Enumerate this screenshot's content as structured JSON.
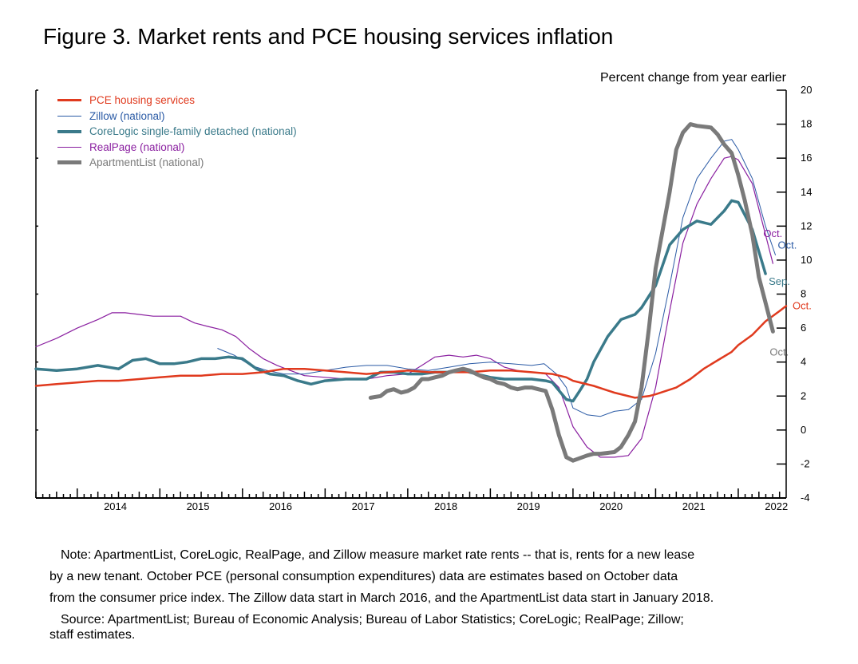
{
  "figure": {
    "title": "Figure 3. Market rents and PCE housing services inflation",
    "units_label": "Percent change from year earlier"
  },
  "notes": {
    "note_lines": [
      "Note: ApartmentList, CoreLogic, RealPage, and Zillow measure market rate rents -- that is, rents for a new lease",
      "by a new tenant. October PCE (personal consumption expenditures) data are estimates based on October data",
      "from the consumer price index. The Zillow data start in March 2016, and the ApartmentList data start in January 2018."
    ],
    "source_lines": [
      "Source: ApartmentList; Bureau of Economic Analysis; Bureau of Labor Statistics; CoreLogic; RealPage; Zillow;",
      "staff estimates."
    ]
  },
  "chart_data": {
    "type": "line",
    "title": "Figure 3. Market rents and PCE housing services inflation",
    "ylabel": "Percent change from year earlier",
    "xlim": [
      2013.5,
      2022.58
    ],
    "ylim": [
      -4,
      20
    ],
    "yticks": [
      -4,
      -2,
      0,
      2,
      4,
      6,
      8,
      10,
      12,
      14,
      16,
      18,
      20
    ],
    "xticks": [
      {
        "label": "2014",
        "x": 2014.0
      },
      {
        "label": "2015",
        "x": 2015.0
      },
      {
        "label": "2016",
        "x": 2016.0
      },
      {
        "label": "2017",
        "x": 2017.0
      },
      {
        "label": "2018",
        "x": 2018.0
      },
      {
        "label": "2019",
        "x": 2019.0
      },
      {
        "label": "2020",
        "x": 2020.0
      },
      {
        "label": "2021",
        "x": 2021.0
      },
      {
        "label": "2022",
        "x": 2022.0
      }
    ],
    "y_axis_side": "right",
    "grid": false,
    "legend_position": "top-left",
    "series": [
      {
        "name": "PCE housing services",
        "color": "#e03a1e",
        "width": 2.5,
        "end_label": "Oct.",
        "points": [
          [
            2013.5,
            2.6
          ],
          [
            2013.75,
            2.7
          ],
          [
            2014.0,
            2.8
          ],
          [
            2014.25,
            2.9
          ],
          [
            2014.5,
            2.9
          ],
          [
            2014.75,
            3.0
          ],
          [
            2015.0,
            3.1
          ],
          [
            2015.25,
            3.2
          ],
          [
            2015.5,
            3.2
          ],
          [
            2015.75,
            3.3
          ],
          [
            2016.0,
            3.3
          ],
          [
            2016.25,
            3.4
          ],
          [
            2016.5,
            3.6
          ],
          [
            2016.75,
            3.6
          ],
          [
            2017.0,
            3.5
          ],
          [
            2017.25,
            3.4
          ],
          [
            2017.5,
            3.3
          ],
          [
            2017.75,
            3.4
          ],
          [
            2018.0,
            3.5
          ],
          [
            2018.25,
            3.4
          ],
          [
            2018.5,
            3.4
          ],
          [
            2018.75,
            3.4
          ],
          [
            2019.0,
            3.5
          ],
          [
            2019.25,
            3.5
          ],
          [
            2019.5,
            3.4
          ],
          [
            2019.75,
            3.3
          ],
          [
            2019.92,
            3.1
          ],
          [
            2020.0,
            2.9
          ],
          [
            2020.25,
            2.6
          ],
          [
            2020.5,
            2.2
          ],
          [
            2020.75,
            1.9
          ],
          [
            2020.92,
            2.0
          ],
          [
            2021.0,
            2.1
          ],
          [
            2021.25,
            2.5
          ],
          [
            2021.42,
            3.0
          ],
          [
            2021.58,
            3.6
          ],
          [
            2021.75,
            4.1
          ],
          [
            2021.92,
            4.6
          ],
          [
            2022.0,
            5.0
          ],
          [
            2022.17,
            5.6
          ],
          [
            2022.33,
            6.4
          ],
          [
            2022.5,
            7.0
          ],
          [
            2022.58,
            7.3
          ]
        ]
      },
      {
        "name": "Zillow (national)",
        "color": "#2a5aa5",
        "width": 1,
        "end_label": "Oct.",
        "points": [
          [
            2015.7,
            4.8
          ],
          [
            2015.9,
            4.4
          ],
          [
            2016.1,
            3.8
          ],
          [
            2016.3,
            3.5
          ],
          [
            2016.5,
            3.3
          ],
          [
            2016.75,
            3.3
          ],
          [
            2017.0,
            3.5
          ],
          [
            2017.25,
            3.7
          ],
          [
            2017.5,
            3.8
          ],
          [
            2017.75,
            3.8
          ],
          [
            2018.0,
            3.6
          ],
          [
            2018.25,
            3.5
          ],
          [
            2018.5,
            3.7
          ],
          [
            2018.75,
            3.9
          ],
          [
            2019.0,
            4.0
          ],
          [
            2019.25,
            3.9
          ],
          [
            2019.5,
            3.8
          ],
          [
            2019.65,
            3.9
          ],
          [
            2019.8,
            3.3
          ],
          [
            2019.92,
            2.5
          ],
          [
            2020.0,
            1.3
          ],
          [
            2020.17,
            0.9
          ],
          [
            2020.33,
            0.8
          ],
          [
            2020.5,
            1.1
          ],
          [
            2020.67,
            1.2
          ],
          [
            2020.83,
            1.8
          ],
          [
            2021.0,
            4.5
          ],
          [
            2021.17,
            8.5
          ],
          [
            2021.33,
            12.5
          ],
          [
            2021.5,
            14.8
          ],
          [
            2021.67,
            16.0
          ],
          [
            2021.83,
            17.0
          ],
          [
            2021.92,
            17.1
          ],
          [
            2022.0,
            16.5
          ],
          [
            2022.17,
            14.8
          ],
          [
            2022.33,
            12.0
          ],
          [
            2022.45,
            10.3
          ]
        ]
      },
      {
        "name": "CoreLogic single-family detached (national)",
        "color": "#3a7a8a",
        "width": 3.5,
        "end_label": "Sep.",
        "points": [
          [
            2013.5,
            3.6
          ],
          [
            2013.75,
            3.5
          ],
          [
            2014.0,
            3.6
          ],
          [
            2014.25,
            3.8
          ],
          [
            2014.5,
            3.6
          ],
          [
            2014.67,
            4.1
          ],
          [
            2014.83,
            4.2
          ],
          [
            2015.0,
            3.9
          ],
          [
            2015.17,
            3.9
          ],
          [
            2015.33,
            4.0
          ],
          [
            2015.5,
            4.2
          ],
          [
            2015.67,
            4.2
          ],
          [
            2015.83,
            4.3
          ],
          [
            2016.0,
            4.2
          ],
          [
            2016.17,
            3.6
          ],
          [
            2016.33,
            3.3
          ],
          [
            2016.5,
            3.2
          ],
          [
            2016.67,
            2.9
          ],
          [
            2016.83,
            2.7
          ],
          [
            2017.0,
            2.9
          ],
          [
            2017.25,
            3.0
          ],
          [
            2017.5,
            3.0
          ],
          [
            2017.67,
            3.4
          ],
          [
            2017.83,
            3.4
          ],
          [
            2018.0,
            3.3
          ],
          [
            2018.17,
            3.3
          ],
          [
            2018.33,
            3.4
          ],
          [
            2018.5,
            3.4
          ],
          [
            2018.67,
            3.5
          ],
          [
            2018.83,
            3.3
          ],
          [
            2019.0,
            3.1
          ],
          [
            2019.17,
            3.0
          ],
          [
            2019.33,
            3.0
          ],
          [
            2019.5,
            3.0
          ],
          [
            2019.67,
            2.9
          ],
          [
            2019.75,
            2.8
          ],
          [
            2019.92,
            1.8
          ],
          [
            2020.0,
            1.7
          ],
          [
            2020.08,
            2.3
          ],
          [
            2020.17,
            3.0
          ],
          [
            2020.25,
            4.0
          ],
          [
            2020.42,
            5.5
          ],
          [
            2020.58,
            6.5
          ],
          [
            2020.75,
            6.8
          ],
          [
            2020.83,
            7.2
          ],
          [
            2021.0,
            8.5
          ],
          [
            2021.17,
            10.9
          ],
          [
            2021.33,
            11.8
          ],
          [
            2021.5,
            12.3
          ],
          [
            2021.67,
            12.1
          ],
          [
            2021.83,
            12.9
          ],
          [
            2021.92,
            13.5
          ],
          [
            2022.0,
            13.4
          ],
          [
            2022.17,
            11.8
          ],
          [
            2022.25,
            10.5
          ],
          [
            2022.33,
            9.2
          ]
        ]
      },
      {
        "name": "RealPage (national)",
        "color": "#8a1fa0",
        "width": 1.2,
        "end_label": "Oct.",
        "points": [
          [
            2013.5,
            4.9
          ],
          [
            2013.75,
            5.4
          ],
          [
            2014.0,
            6.0
          ],
          [
            2014.25,
            6.5
          ],
          [
            2014.42,
            6.9
          ],
          [
            2014.58,
            6.9
          ],
          [
            2014.75,
            6.8
          ],
          [
            2014.92,
            6.7
          ],
          [
            2015.08,
            6.7
          ],
          [
            2015.25,
            6.7
          ],
          [
            2015.42,
            6.3
          ],
          [
            2015.58,
            6.1
          ],
          [
            2015.75,
            5.9
          ],
          [
            2015.92,
            5.5
          ],
          [
            2016.08,
            4.8
          ],
          [
            2016.25,
            4.2
          ],
          [
            2016.42,
            3.8
          ],
          [
            2016.58,
            3.5
          ],
          [
            2016.75,
            3.2
          ],
          [
            2017.0,
            3.1
          ],
          [
            2017.25,
            3.0
          ],
          [
            2017.5,
            3.0
          ],
          [
            2017.75,
            3.2
          ],
          [
            2018.0,
            3.3
          ],
          [
            2018.17,
            3.8
          ],
          [
            2018.33,
            4.3
          ],
          [
            2018.5,
            4.4
          ],
          [
            2018.67,
            4.3
          ],
          [
            2018.83,
            4.4
          ],
          [
            2019.0,
            4.2
          ],
          [
            2019.17,
            3.7
          ],
          [
            2019.33,
            3.5
          ],
          [
            2019.5,
            3.4
          ],
          [
            2019.67,
            3.3
          ],
          [
            2019.83,
            2.5
          ],
          [
            2019.92,
            1.3
          ],
          [
            2020.0,
            0.2
          ],
          [
            2020.17,
            -1.0
          ],
          [
            2020.33,
            -1.6
          ],
          [
            2020.5,
            -1.6
          ],
          [
            2020.67,
            -1.5
          ],
          [
            2020.83,
            -0.5
          ],
          [
            2021.0,
            2.5
          ],
          [
            2021.17,
            7.0
          ],
          [
            2021.33,
            11.0
          ],
          [
            2021.5,
            13.3
          ],
          [
            2021.67,
            14.8
          ],
          [
            2021.83,
            16.0
          ],
          [
            2021.92,
            16.1
          ],
          [
            2022.0,
            15.9
          ],
          [
            2022.17,
            14.5
          ],
          [
            2022.33,
            11.5
          ],
          [
            2022.42,
            9.8
          ]
        ]
      },
      {
        "name": "ApartmentList (national)",
        "color": "#7a7a7a",
        "width": 5,
        "end_label": "Oct.",
        "points": [
          [
            2017.55,
            1.9
          ],
          [
            2017.67,
            2.0
          ],
          [
            2017.75,
            2.3
          ],
          [
            2017.83,
            2.4
          ],
          [
            2017.92,
            2.2
          ],
          [
            2018.0,
            2.3
          ],
          [
            2018.08,
            2.5
          ],
          [
            2018.17,
            3.0
          ],
          [
            2018.25,
            3.0
          ],
          [
            2018.33,
            3.1
          ],
          [
            2018.42,
            3.2
          ],
          [
            2018.5,
            3.4
          ],
          [
            2018.58,
            3.5
          ],
          [
            2018.67,
            3.6
          ],
          [
            2018.75,
            3.5
          ],
          [
            2018.83,
            3.3
          ],
          [
            2018.92,
            3.1
          ],
          [
            2019.0,
            3.0
          ],
          [
            2019.08,
            2.8
          ],
          [
            2019.17,
            2.7
          ],
          [
            2019.25,
            2.5
          ],
          [
            2019.33,
            2.4
          ],
          [
            2019.42,
            2.5
          ],
          [
            2019.5,
            2.5
          ],
          [
            2019.58,
            2.4
          ],
          [
            2019.67,
            2.3
          ],
          [
            2019.75,
            1.2
          ],
          [
            2019.83,
            -0.3
          ],
          [
            2019.92,
            -1.6
          ],
          [
            2020.0,
            -1.8
          ],
          [
            2020.17,
            -1.5
          ],
          [
            2020.25,
            -1.4
          ],
          [
            2020.33,
            -1.4
          ],
          [
            2020.5,
            -1.3
          ],
          [
            2020.58,
            -1.0
          ],
          [
            2020.67,
            -0.3
          ],
          [
            2020.75,
            0.5
          ],
          [
            2020.83,
            2.5
          ],
          [
            2020.92,
            6.0
          ],
          [
            2021.0,
            9.5
          ],
          [
            2021.17,
            14.0
          ],
          [
            2021.25,
            16.5
          ],
          [
            2021.33,
            17.5
          ],
          [
            2021.42,
            18.0
          ],
          [
            2021.5,
            17.9
          ],
          [
            2021.67,
            17.8
          ],
          [
            2021.75,
            17.4
          ],
          [
            2021.83,
            16.8
          ],
          [
            2021.92,
            16.3
          ],
          [
            2022.0,
            15.0
          ],
          [
            2022.08,
            13.5
          ],
          [
            2022.17,
            11.5
          ],
          [
            2022.25,
            9.0
          ],
          [
            2022.33,
            7.5
          ],
          [
            2022.42,
            5.8
          ]
        ]
      }
    ]
  }
}
